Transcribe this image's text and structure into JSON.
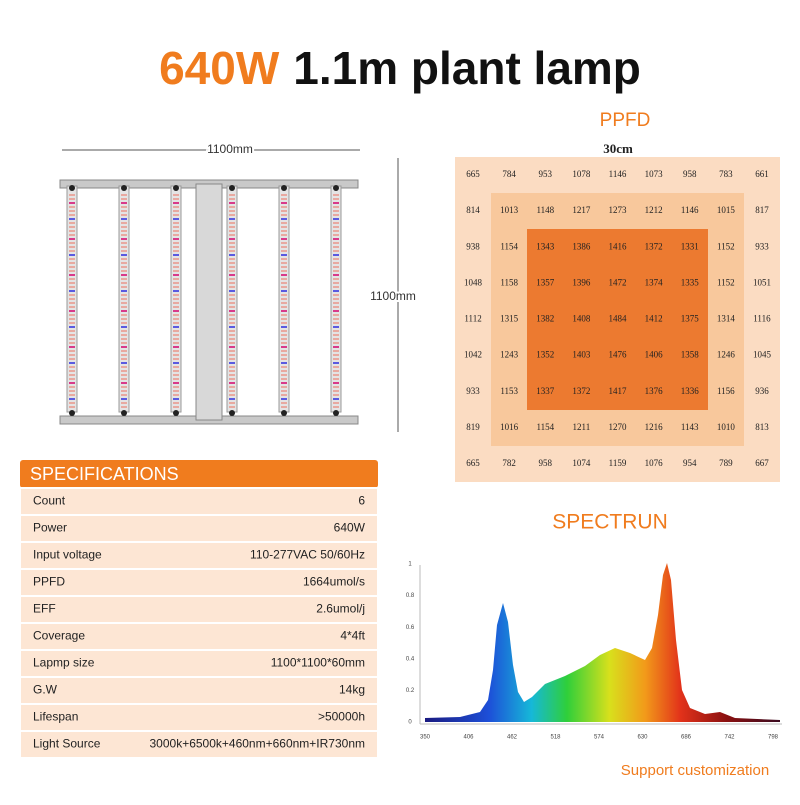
{
  "header": {
    "title_highlight": "640W",
    "title": "1.1m plant lamp"
  },
  "lamp": {
    "width_label": "1100mm",
    "height_label": "1100mm"
  },
  "ppfd": {
    "title": "PPFD",
    "scale_label": "30cm",
    "rows": [
      [
        665,
        784,
        953,
        1078,
        1146,
        1073,
        958,
        783,
        661
      ],
      [
        814,
        1013,
        1148,
        1217,
        1273,
        1212,
        1146,
        1015,
        817
      ],
      [
        938,
        1154,
        1343,
        1386,
        1416,
        1372,
        1331,
        1152,
        933
      ],
      [
        1048,
        1158,
        1357,
        1396,
        1472,
        1374,
        1335,
        1152,
        1051
      ],
      [
        1112,
        1315,
        1382,
        1408,
        1484,
        1412,
        1375,
        1314,
        1116
      ],
      [
        1042,
        1243,
        1352,
        1403,
        1476,
        1406,
        1358,
        1246,
        1045
      ],
      [
        933,
        1153,
        1337,
        1372,
        1417,
        1376,
        1336,
        1156,
        936
      ],
      [
        819,
        1016,
        1154,
        1211,
        1270,
        1216,
        1143,
        1010,
        813
      ],
      [
        665,
        782,
        958,
        1074,
        1159,
        1076,
        954,
        789,
        667
      ]
    ]
  },
  "specifications": {
    "title": "SPECIFICATIONS",
    "rows": [
      [
        "Count",
        "6"
      ],
      [
        "Power",
        "640W"
      ],
      [
        "Input voltage",
        "110-277VAC 50/60Hz"
      ],
      [
        "PPFD",
        "1664umol/s"
      ],
      [
        "EFF",
        "2.6umol/j"
      ],
      [
        "Coverage",
        "4*4ft"
      ],
      [
        "Lapmp size",
        "1100*1100*60mm"
      ],
      [
        "G.W",
        "14kg"
      ],
      [
        "Lifespan",
        ">50000h"
      ],
      [
        "Light Source",
        "3000k+6500k+460nm+660nm+IR730nm"
      ]
    ]
  },
  "spectrum": {
    "title": "SPECTRUN",
    "yticks": [
      0,
      0.2,
      0.4,
      0.6,
      0.8,
      1
    ],
    "xticks": [
      350,
      406,
      462,
      518,
      574,
      630,
      686,
      742,
      798
    ]
  },
  "footer": {
    "note": "Support customization"
  }
}
